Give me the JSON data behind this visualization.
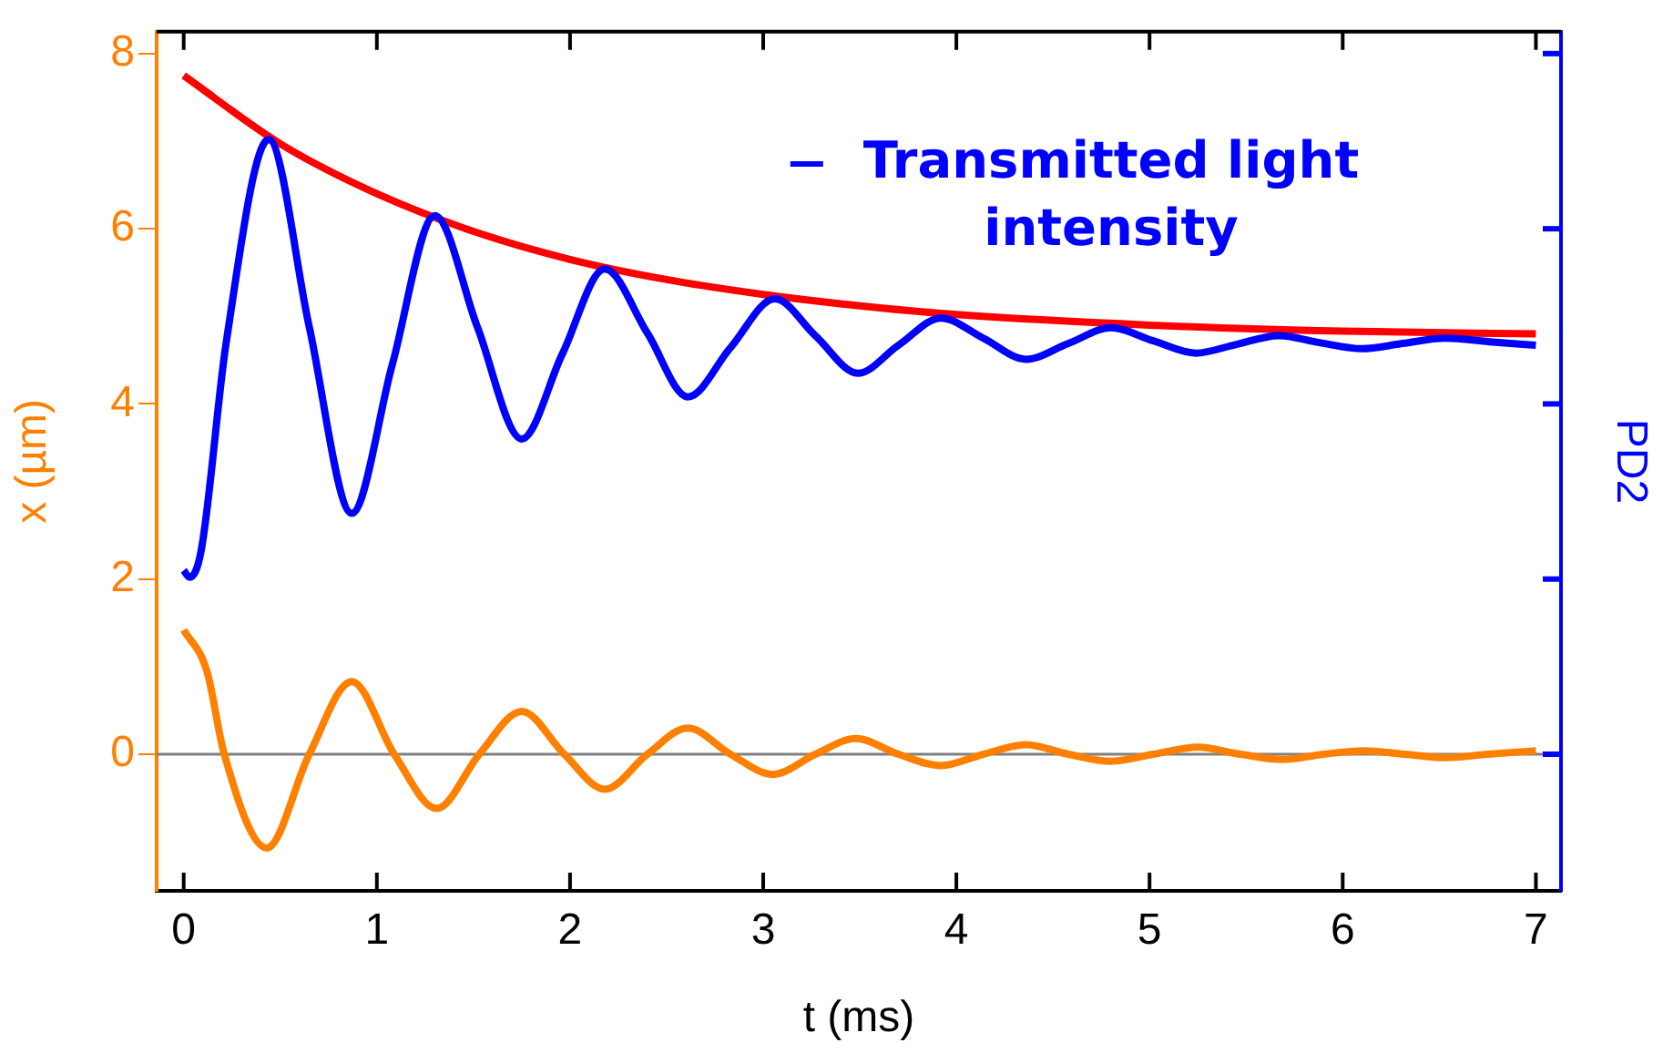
{
  "chart_data": {
    "type": "line",
    "xlabel": "t (ms)",
    "ylabel": "x (µm)",
    "y2label": "PD2",
    "xlim": [
      -0.14,
      7.13
    ],
    "xticks": [
      0,
      1,
      2,
      3,
      4,
      5,
      6,
      7
    ],
    "ylim": [
      -1.56,
      8.25
    ],
    "yticks": [
      0,
      2,
      4,
      6,
      8
    ],
    "legend": "top right",
    "marker": "none",
    "grid": false,
    "ref_lines": [
      {
        "axis": "y",
        "value": 0,
        "color": "#808080"
      }
    ],
    "series": [
      {
        "color": "#ff8000",
        "x": [
          0,
          0.12,
          0.21,
          0.43,
          0.65,
          0.87,
          1.09,
          1.31,
          1.53,
          1.75,
          1.97,
          2.18,
          2.4,
          2.61,
          2.83,
          3.05,
          3.27,
          3.48,
          3.7,
          3.92,
          4.14,
          4.36,
          4.58,
          4.8,
          5.02,
          5.25,
          5.47,
          5.69,
          5.9,
          6.11,
          6.32,
          6.53,
          6.75,
          7.0
        ],
        "values": [
          1.42,
          0.95,
          0,
          -1.07,
          0,
          0.83,
          0,
          -0.62,
          0,
          0.49,
          0,
          -0.4,
          0,
          0.3,
          0,
          -0.23,
          0,
          0.18,
          0,
          -0.13,
          0,
          0.11,
          0,
          -0.08,
          0,
          0.08,
          0,
          -0.06,
          0,
          0.04,
          0,
          -0.04,
          0,
          0.04
        ]
      },
      {
        "name": "Transmitted light intensity",
        "color": "#0000ff",
        "x": [
          0,
          0.03,
          0.09,
          0.22,
          0.44,
          0.65,
          0.87,
          1.08,
          1.3,
          1.52,
          1.75,
          1.96,
          2.18,
          2.4,
          2.61,
          2.83,
          3.06,
          3.27,
          3.49,
          3.7,
          3.92,
          4.14,
          4.36,
          4.58,
          4.8,
          5.02,
          5.24,
          5.45,
          5.67,
          5.88,
          6.1,
          6.31,
          6.53,
          6.76,
          7.0
        ],
        "values": [
          2.1,
          2.02,
          2.32,
          4.7,
          7.02,
          4.88,
          2.75,
          4.45,
          6.15,
          4.88,
          3.6,
          4.57,
          5.54,
          4.81,
          4.08,
          4.64,
          5.2,
          4.78,
          4.35,
          4.67,
          4.98,
          4.75,
          4.51,
          4.69,
          4.87,
          4.72,
          4.58,
          4.68,
          4.78,
          4.7,
          4.63,
          4.69,
          4.75,
          4.71,
          4.67
        ]
      },
      {
        "color": "#ff0000",
        "x": [
          0,
          0.5,
          1,
          1.5,
          2,
          2.5,
          3,
          3.5,
          4,
          5,
          6,
          7
        ],
        "values": [
          7.75,
          6.97,
          6.4,
          5.97,
          5.65,
          5.42,
          5.25,
          5.12,
          5.02,
          4.9,
          4.83,
          4.8
        ]
      }
    ]
  }
}
